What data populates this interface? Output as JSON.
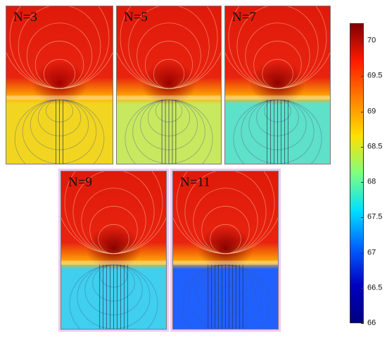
{
  "panels": [
    {
      "label": "N=3",
      "conductors": 3,
      "upper": "#e8230f",
      "lower": "#f2d520",
      "well": "#a50000"
    },
    {
      "label": "N=5",
      "conductors": 5,
      "upper": "#e8230f",
      "lower": "#c8e860",
      "well": "#9a0000"
    },
    {
      "label": "N=7",
      "conductors": 7,
      "upper": "#e8230f",
      "lower": "#5fe0c8",
      "well": "#8e0000"
    },
    {
      "label": "N=9",
      "conductors": 9,
      "upper": "#e8230f",
      "lower": "#40cfee",
      "well": "#8a0000"
    },
    {
      "label": "N=11",
      "conductors": 11,
      "upper": "#e8230f",
      "lower": "#2060ff",
      "well": "#8a0000"
    }
  ],
  "colorbar": {
    "min": 66,
    "max": 70.25,
    "ticks": [
      "70",
      "69.5",
      "69",
      "68.5",
      "68",
      "67.5",
      "67",
      "66.5",
      "66"
    ],
    "colors": [
      "#800000",
      "#ff1a00",
      "#ff8000",
      "#ffe000",
      "#80ff80",
      "#00e0ff",
      "#0060ff",
      "#0000c0",
      "#000080"
    ]
  }
}
